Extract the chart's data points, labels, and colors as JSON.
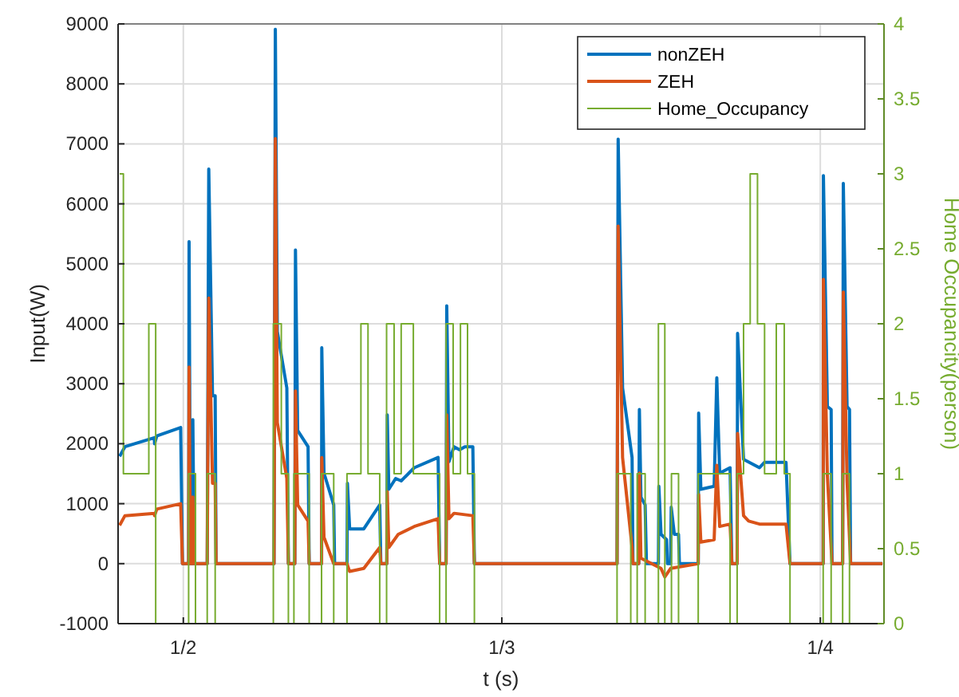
{
  "chart_data": {
    "type": "line",
    "xlabel": "t (s)",
    "ylabel": "Input(W)",
    "y2label": "Home Occupancity(person)",
    "xlim": [
      "--01-01T19:05",
      "--01-04T04:48"
    ],
    "xticks": [
      {
        "value": "--01-02",
        "label": "1/2"
      },
      {
        "value": "--01-03",
        "label": "1/3"
      },
      {
        "value": "--01-04",
        "label": "1/4"
      }
    ],
    "ylim": [
      -1000,
      9000
    ],
    "yticks": [
      -1000,
      0,
      1000,
      2000,
      3000,
      4000,
      5000,
      6000,
      7000,
      8000,
      9000
    ],
    "y2lim": [
      0,
      4
    ],
    "y2ticks": [
      0,
      0.5,
      1,
      1.5,
      2,
      2.5,
      3,
      3.5,
      4
    ],
    "grid": true,
    "legend": "top right",
    "line_style": "solid",
    "marker": "none",
    "series": [
      {
        "name": "nonZEH",
        "color": "#0072bd",
        "x": [
          "--01-01T19:12",
          "--01-01T19:36",
          "--01-01T21:49",
          "--01-01T21:50",
          "--01-01T22:00",
          "--01-01T23:48",
          "--01-01T23:56",
          "--01-02T00:24",
          "--01-02T00:26",
          "--01-02T00:32",
          "--01-02T00:42",
          "--01-02T00:43",
          "--01-02T00:49",
          "--01-02T01:48",
          "--01-02T01:55",
          "--01-02T02:12",
          "--01-02T02:24",
          "--01-02T02:28",
          "--01-02T06:50",
          "--01-02T06:56",
          "--01-02T07:05",
          "--01-02T07:48",
          "--01-02T07:55",
          "--01-02T08:24",
          "--01-02T08:27",
          "--01-02T08:37",
          "--01-02T09:24",
          "--01-02T09:29",
          "--01-02T10:25",
          "--01-02T10:26",
          "--01-02T10:36",
          "--01-02T11:20",
          "--01-02T11:24",
          "--01-02T12:20",
          "--01-02T12:22",
          "--01-02T12:32",
          "--01-02T13:36",
          "--01-02T14:48",
          "--01-02T14:53",
          "--01-02T15:20",
          "--01-02T15:22",
          "--01-02T15:29",
          "--01-02T16:00",
          "--01-02T16:25",
          "--01-02T17:24",
          "--01-02T19:12",
          "--01-02T19:19",
          "--01-02T19:48",
          "--01-02T19:51",
          "--01-02T20:01",
          "--01-02T20:24",
          "--01-02T20:49",
          "--01-02T21:13",
          "--01-02T21:49",
          "--01-02T21:56",
          "--01-03T08:41",
          "--01-03T08:46",
          "--01-03T09:06",
          "--01-03T09:49",
          "--01-03T09:53",
          "--01-03T10:19",
          "--01-03T10:22",
          "--01-03T10:29",
          "--01-03T10:48",
          "--01-03T10:54",
          "--01-03T11:48",
          "--01-03T11:50",
          "--01-03T12:00",
          "--01-03T12:25",
          "--01-03T12:29",
          "--01-03T12:43",
          "--01-03T12:46",
          "--01-03T13:00",
          "--01-03T13:19",
          "--01-03T13:23",
          "--01-03T14:48",
          "--01-03T14:50",
          "--01-03T15:00",
          "--01-03T16:00",
          "--01-03T16:12",
          "--01-03T16:25",
          "--01-03T17:12",
          "--01-03T17:20",
          "--01-03T17:44",
          "--01-03T17:46",
          "--01-03T18:13",
          "--01-03T19:25",
          "--01-03T19:48",
          "--01-03T21:25",
          "--01-03T21:43",
          "--01-04T00:13",
          "--01-04T00:14",
          "--01-04T00:32",
          "--01-04T00:49",
          "--01-04T00:53",
          "--01-04T01:41",
          "--01-04T01:44",
          "--01-04T02:01",
          "--01-04T02:12",
          "--01-04T02:17",
          "--01-04T04:41"
        ],
        "values": [
          1790,
          1950,
          2100,
          2000,
          2130,
          2270,
          0,
          0,
          5370,
          0,
          0,
          2400,
          0,
          0,
          6580,
          2800,
          2800,
          0,
          0,
          8910,
          3870,
          2930,
          0,
          0,
          5230,
          2220,
          1950,
          0,
          0,
          3600,
          1510,
          980,
          0,
          0,
          1340,
          580,
          580,
          980,
          0,
          0,
          2480,
          1240,
          1420,
          1380,
          1600,
          1770,
          0,
          0,
          4300,
          1700,
          1950,
          1900,
          1950,
          1950,
          0,
          0,
          7080,
          2930,
          1770,
          0,
          0,
          2570,
          1110,
          980,
          0,
          0,
          1290,
          490,
          400,
          0,
          0,
          940,
          490,
          490,
          0,
          0,
          2510,
          1240,
          1290,
          3100,
          1510,
          1600,
          0,
          0,
          3840,
          1740,
          1600,
          1690,
          1690,
          0,
          0,
          6470,
          2620,
          2570,
          0,
          0,
          6340,
          2620,
          2570,
          0,
          0
        ]
      },
      {
        "name": "ZEH",
        "color": "#d95319",
        "x": [
          "--01-01T19:12",
          "--01-01T19:36",
          "--01-01T21:49",
          "--01-01T21:50",
          "--01-01T22:00",
          "--01-01T23:48",
          "--01-01T23:56",
          "--01-02T00:24",
          "--01-02T00:26",
          "--01-02T00:32",
          "--01-02T00:42",
          "--01-02T00:43",
          "--01-02T00:49",
          "--01-02T01:48",
          "--01-02T01:55",
          "--01-02T02:12",
          "--01-02T02:24",
          "--01-02T02:28",
          "--01-02T06:50",
          "--01-02T06:56",
          "--01-02T07:05",
          "--01-02T07:48",
          "--01-02T07:55",
          "--01-02T08:24",
          "--01-02T08:27",
          "--01-02T08:37",
          "--01-02T09:24",
          "--01-02T09:29",
          "--01-02T10:25",
          "--01-02T10:26",
          "--01-02T10:36",
          "--01-02T11:20",
          "--01-02T12:20",
          "--01-02T12:32",
          "--01-02T13:36",
          "--01-02T14:48",
          "--01-02T14:53",
          "--01-02T15:20",
          "--01-02T15:22",
          "--01-02T15:29",
          "--01-02T16:12",
          "--01-02T17:24",
          "--01-02T19:12",
          "--01-02T19:19",
          "--01-02T19:48",
          "--01-02T19:51",
          "--01-02T20:01",
          "--01-02T20:24",
          "--01-02T21:49",
          "--01-02T21:56",
          "--01-03T08:41",
          "--01-03T08:46",
          "--01-03T09:06",
          "--01-03T09:49",
          "--01-03T09:53",
          "--01-03T10:19",
          "--01-03T10:22",
          "--01-03T10:29",
          "--01-03T12:00",
          "--01-03T12:17",
          "--01-03T12:43",
          "--01-03T14:48",
          "--01-03T14:50",
          "--01-03T15:00",
          "--01-03T16:00",
          "--01-03T16:12",
          "--01-03T16:25",
          "--01-03T17:12",
          "--01-03T17:20",
          "--01-03T17:44",
          "--01-03T17:46",
          "--01-03T18:13",
          "--01-03T18:36",
          "--01-03T19:25",
          "--01-03T21:25",
          "--01-03T21:43",
          "--01-04T00:13",
          "--01-04T00:14",
          "--01-04T00:32",
          "--01-04T00:53",
          "--01-04T01:41",
          "--01-04T01:44",
          "--01-04T02:01",
          "--01-04T02:17",
          "--01-04T04:41"
        ],
        "values": [
          640,
          800,
          840,
          800,
          910,
          1000,
          0,
          0,
          3280,
          0,
          0,
          1110,
          0,
          0,
          4430,
          1340,
          1340,
          0,
          0,
          7090,
          2350,
          1420,
          0,
          0,
          2880,
          980,
          710,
          0,
          0,
          1770,
          440,
          0,
          0,
          -130,
          -80,
          270,
          0,
          0,
          1200,
          270,
          490,
          620,
          750,
          0,
          0,
          2480,
          750,
          840,
          800,
          0,
          0,
          5630,
          1770,
          270,
          0,
          0,
          1510,
          90,
          -80,
          -220,
          -80,
          0,
          1150,
          360,
          400,
          1640,
          620,
          660,
          0,
          0,
          2170,
          800,
          710,
          660,
          660,
          0,
          0,
          4740,
          1470,
          0,
          0,
          4530,
          1380,
          0,
          0
        ]
      },
      {
        "name": "Home_Occupancy",
        "type": "step",
        "axis": "y2",
        "color": "#77ac30",
        "x": [
          "--01-01T19:12",
          "--01-01T19:29",
          "--01-01T21:24",
          "--01-01T21:55",
          "--01-02T00:24",
          "--01-02T00:55",
          "--01-02T01:48",
          "--01-02T02:24",
          "--01-02T06:47",
          "--01-02T07:23",
          "--01-02T07:55",
          "--01-02T08:20",
          "--01-02T09:29",
          "--01-02T10:25",
          "--01-02T11:20",
          "--01-02T12:20",
          "--01-02T13:23",
          "--01-02T13:55",
          "--01-02T14:48",
          "--01-02T15:19",
          "--01-02T15:53",
          "--01-02T16:25",
          "--01-02T17:20",
          "--01-02T19:19",
          "--01-02T19:48",
          "--01-02T20:20",
          "--01-02T20:53",
          "--01-02T21:25",
          "--01-02T21:56",
          "--01-03T08:41",
          "--01-03T09:43",
          "--01-03T10:12",
          "--01-03T10:48",
          "--01-03T11:48",
          "--01-03T12:17",
          "--01-03T12:47",
          "--01-03T13:19",
          "--01-03T14:48",
          "--01-03T17:12",
          "--01-03T17:44",
          "--01-03T18:13",
          "--01-03T18:43",
          "--01-03T19:16",
          "--01-03T19:48",
          "--01-03T20:41",
          "--01-03T21:17",
          "--01-03T21:43",
          "--01-04T00:13",
          "--01-04T00:49",
          "--01-04T01:41",
          "--01-04T02:12",
          "--01-04T04:41"
        ],
        "values": [
          3,
          1,
          2,
          0,
          1,
          0,
          1,
          0,
          2,
          1,
          0,
          1,
          0,
          1,
          0,
          1,
          2,
          1,
          0,
          2,
          1,
          2,
          1,
          0,
          2,
          1,
          2,
          1,
          0,
          1,
          0,
          1,
          0,
          2,
          0,
          1,
          0,
          1,
          0,
          1,
          2,
          3,
          2,
          1,
          2,
          1,
          0,
          1,
          0,
          1,
          0,
          0
        ]
      }
    ]
  }
}
